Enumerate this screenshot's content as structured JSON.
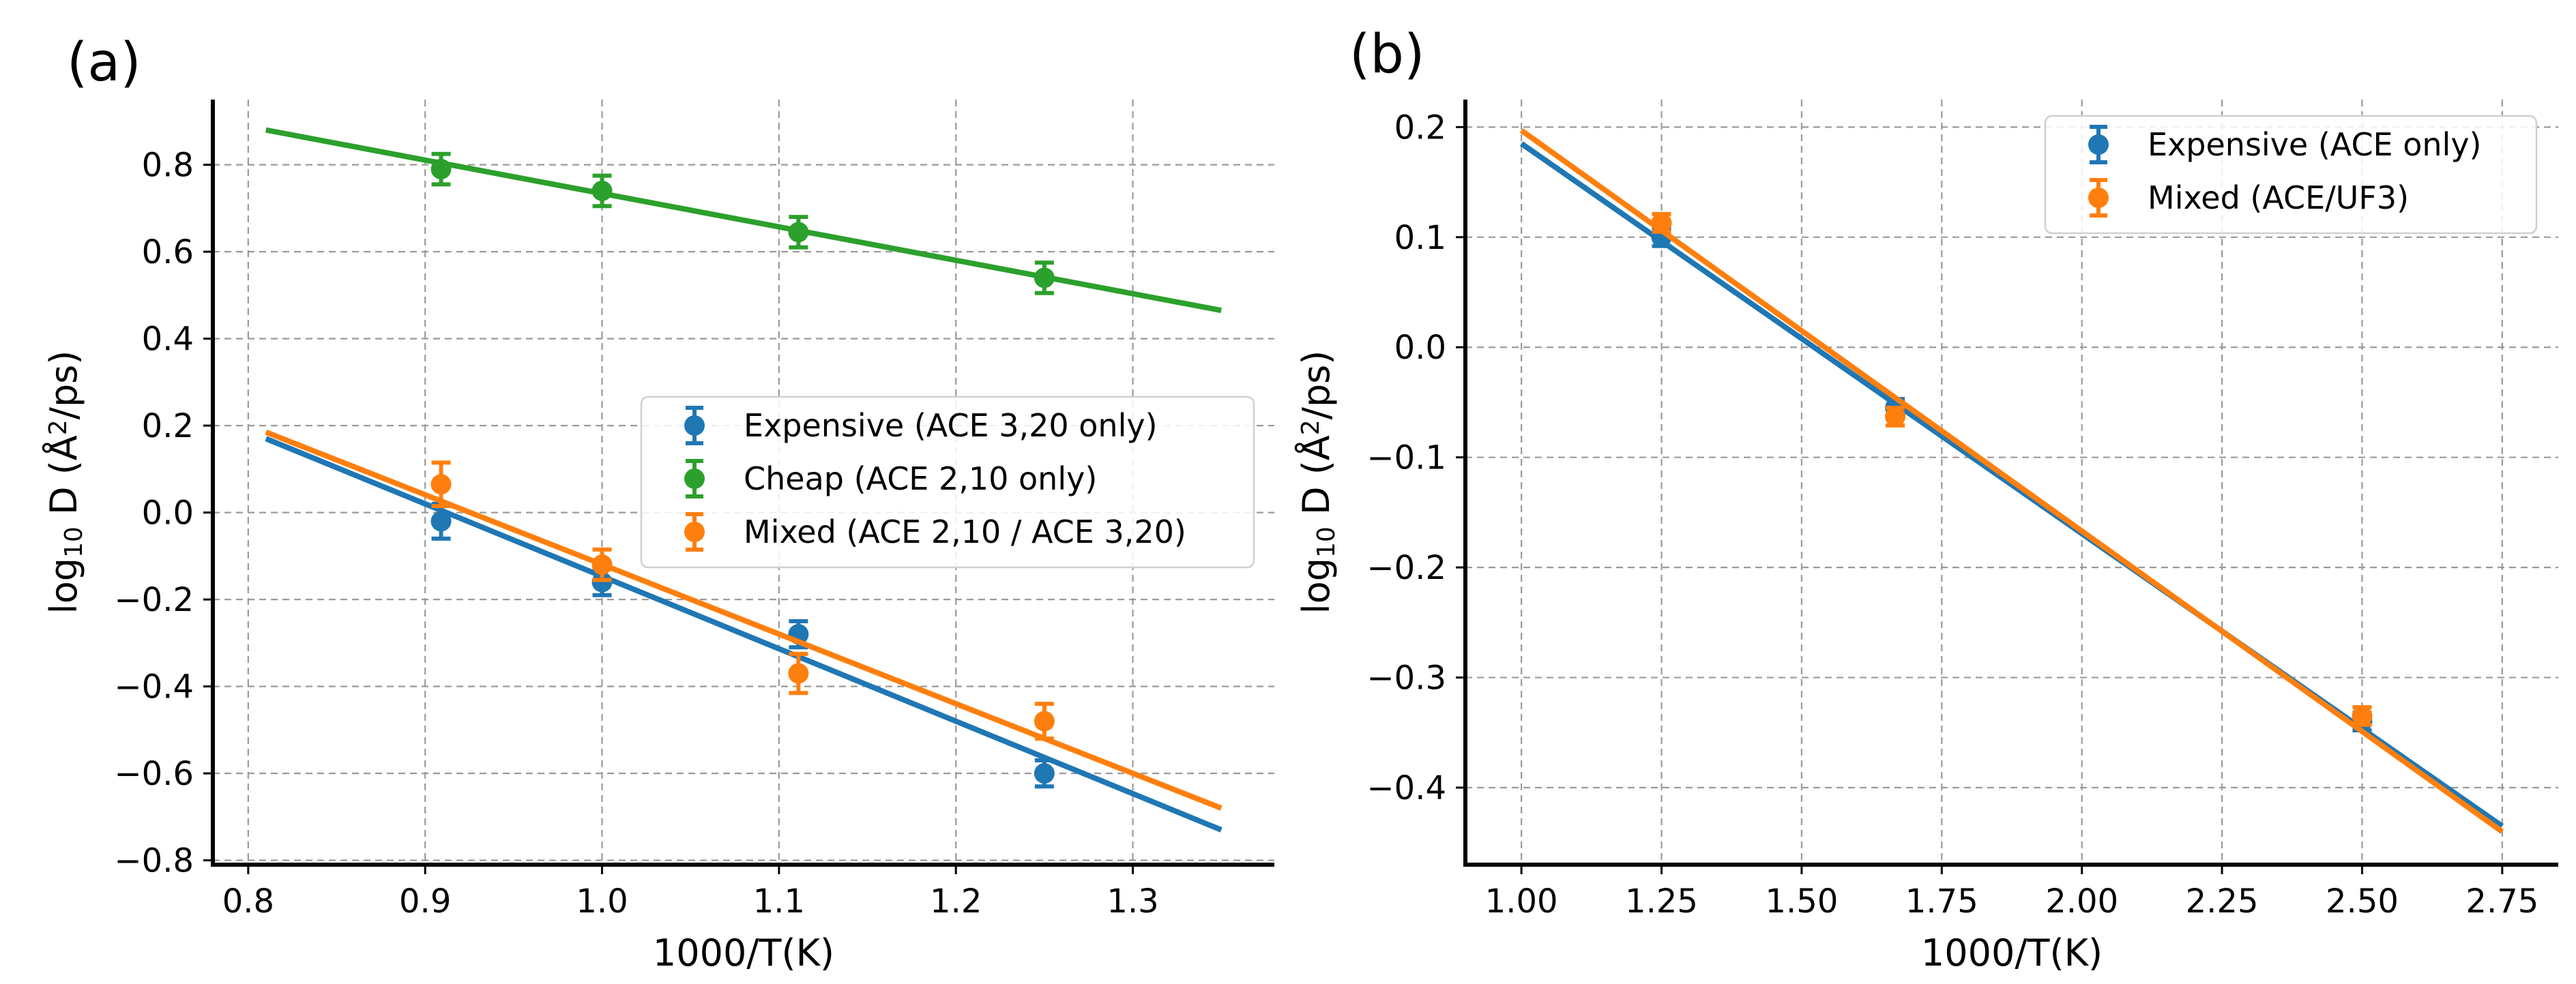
{
  "chart_data": [
    {
      "type": "scatter",
      "panel_label": "(a)",
      "xlabel": "1000/T(K)",
      "ylabel_prefix": "log",
      "ylabel_sub": "10",
      "ylabel_main": " D (Å",
      "ylabel_sup": "2",
      "ylabel_suffix": "/ps)",
      "xlim": [
        0.78,
        1.38
      ],
      "ylim": [
        -0.81,
        0.95
      ],
      "xticks": [
        0.8,
        0.9,
        1.0,
        1.1,
        1.2,
        1.3
      ],
      "xtick_labels": [
        "0.8",
        "0.9",
        "1.0",
        "1.1",
        "1.2",
        "1.3"
      ],
      "yticks": [
        -0.8,
        -0.6,
        -0.4,
        -0.2,
        0.0,
        0.2,
        0.4,
        0.6,
        0.8
      ],
      "ytick_labels": [
        "−0.8",
        "−0.6",
        "−0.4",
        "−0.2",
        "0.0",
        "0.2",
        "0.4",
        "0.6",
        "0.8"
      ],
      "grid": true,
      "legend_position": "center-right",
      "series": [
        {
          "name": "Expensive (ACE 3,20 only)",
          "color": "#1f77b4",
          "x": [
            0.909,
            1.0,
            1.111,
            1.25
          ],
          "y": [
            -0.02,
            -0.16,
            -0.28,
            -0.6
          ],
          "yerr": [
            0.04,
            0.03,
            0.03,
            0.03
          ],
          "fit": {
            "x": [
              0.81,
              1.35
            ],
            "y": [
              0.17,
              -0.73
            ]
          }
        },
        {
          "name": "Cheap (ACE 2,10 only)",
          "color": "#2ca02c",
          "x": [
            0.909,
            1.0,
            1.111,
            1.25
          ],
          "y": [
            0.79,
            0.74,
            0.645,
            0.54
          ],
          "yerr": [
            0.035,
            0.035,
            0.035,
            0.035
          ],
          "fit": {
            "x": [
              0.81,
              1.35
            ],
            "y": [
              0.88,
              0.465
            ]
          }
        },
        {
          "name": "Mixed (ACE 2,10 / ACE 3,20)",
          "color": "#ff7f0e",
          "x": [
            0.909,
            1.0,
            1.111,
            1.25
          ],
          "y": [
            0.065,
            -0.12,
            -0.37,
            -0.48
          ],
          "yerr": [
            0.05,
            0.035,
            0.045,
            0.04
          ],
          "fit": {
            "x": [
              0.81,
              1.35
            ],
            "y": [
              0.185,
              -0.68
            ]
          }
        }
      ]
    },
    {
      "type": "scatter",
      "panel_label": "(b)",
      "xlabel": "1000/T(K)",
      "ylabel_prefix": "log",
      "ylabel_sub": "10",
      "ylabel_main": " D (Å",
      "ylabel_sup": "2",
      "ylabel_suffix": "/ps)",
      "xlim": [
        0.9,
        2.85
      ],
      "ylim": [
        -0.47,
        0.225
      ],
      "xticks": [
        1.0,
        1.25,
        1.5,
        1.75,
        2.0,
        2.25,
        2.5,
        2.75
      ],
      "xtick_labels": [
        "1.00",
        "1.25",
        "1.50",
        "1.75",
        "2.00",
        "2.25",
        "2.50",
        "2.75"
      ],
      "yticks": [
        -0.4,
        -0.3,
        -0.2,
        -0.1,
        0.0,
        0.1,
        0.2
      ],
      "ytick_labels": [
        "−0.4",
        "−0.3",
        "−0.2",
        "−0.1",
        "0.0",
        "0.1",
        "0.2"
      ],
      "grid": true,
      "legend_position": "upper-right",
      "series": [
        {
          "name": "Expensive (ACE only)",
          "color": "#1f77b4",
          "x": [
            1.25,
            1.667,
            2.5
          ],
          "y": [
            0.1,
            -0.055,
            -0.34
          ],
          "yerr": [
            0.008,
            0.008,
            0.008
          ],
          "fit": {
            "x": [
              1.0,
              2.75
            ],
            "y": [
              0.185,
              -0.435
            ]
          }
        },
        {
          "name": "Mixed (ACE/UF3)",
          "color": "#ff7f0e",
          "x": [
            1.25,
            1.667,
            2.5
          ],
          "y": [
            0.113,
            -0.063,
            -0.335
          ],
          "yerr": [
            0.008,
            0.008,
            0.008
          ],
          "fit": {
            "x": [
              1.0,
              2.75
            ],
            "y": [
              0.197,
              -0.44
            ]
          }
        }
      ]
    }
  ]
}
